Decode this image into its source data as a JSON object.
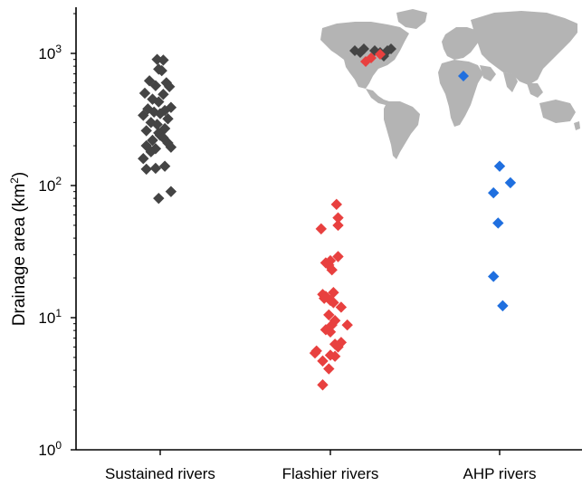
{
  "chart_data": {
    "type": "scatter",
    "ylabel": "Drainage area (km",
    "ylabel_sup": "2",
    "ylabel_close": ")",
    "yscale": "log",
    "ylim": [
      1,
      2000
    ],
    "yticks": [
      {
        "value": 1,
        "base": "10",
        "exp": "0"
      },
      {
        "value": 10,
        "base": "10",
        "exp": "1"
      },
      {
        "value": 100,
        "base": "10",
        "exp": "2"
      },
      {
        "value": 1000,
        "base": "10",
        "exp": "3"
      }
    ],
    "grid": false,
    "categories": [
      "Sustained rivers",
      "Flashier rivers",
      "AHP rivers"
    ],
    "series": [
      {
        "category": "Sustained rivers",
        "color": "#444444",
        "points": [
          {
            "offset": -0.02,
            "y": 900
          },
          {
            "offset": 0.02,
            "y": 890
          },
          {
            "offset": -0.01,
            "y": 760
          },
          {
            "offset": 0.01,
            "y": 740
          },
          {
            "offset": -0.07,
            "y": 620
          },
          {
            "offset": 0.04,
            "y": 600
          },
          {
            "offset": -0.03,
            "y": 570
          },
          {
            "offset": 0.06,
            "y": 560
          },
          {
            "offset": -0.1,
            "y": 500
          },
          {
            "offset": 0.02,
            "y": 490
          },
          {
            "offset": -0.05,
            "y": 450
          },
          {
            "offset": -0.01,
            "y": 430
          },
          {
            "offset": 0.07,
            "y": 390
          },
          {
            "offset": -0.08,
            "y": 380
          },
          {
            "offset": 0.03,
            "y": 370
          },
          {
            "offset": -0.04,
            "y": 360
          },
          {
            "offset": 0.0,
            "y": 350
          },
          {
            "offset": -0.11,
            "y": 340
          },
          {
            "offset": 0.05,
            "y": 320
          },
          {
            "offset": -0.06,
            "y": 300
          },
          {
            "offset": -0.02,
            "y": 290
          },
          {
            "offset": 0.03,
            "y": 270
          },
          {
            "offset": -0.09,
            "y": 260
          },
          {
            "offset": -0.01,
            "y": 250
          },
          {
            "offset": 0.0,
            "y": 240
          },
          {
            "offset": 0.02,
            "y": 230
          },
          {
            "offset": -0.05,
            "y": 220
          },
          {
            "offset": 0.05,
            "y": 210
          },
          {
            "offset": -0.09,
            "y": 200
          },
          {
            "offset": 0.07,
            "y": 195
          },
          {
            "offset": -0.03,
            "y": 190
          },
          {
            "offset": -0.06,
            "y": 180
          },
          {
            "offset": -0.11,
            "y": 160
          },
          {
            "offset": 0.03,
            "y": 140
          },
          {
            "offset": -0.03,
            "y": 135
          },
          {
            "offset": -0.09,
            "y": 133
          },
          {
            "offset": 0.07,
            "y": 90
          },
          {
            "offset": -0.01,
            "y": 80
          }
        ]
      },
      {
        "category": "Flashier rivers",
        "color": "#e8403f",
        "points": [
          {
            "offset": 0.04,
            "y": 72
          },
          {
            "offset": 0.05,
            "y": 57
          },
          {
            "offset": 0.05,
            "y": 50
          },
          {
            "offset": -0.06,
            "y": 47
          },
          {
            "offset": 0.05,
            "y": 29
          },
          {
            "offset": 0.0,
            "y": 27
          },
          {
            "offset": -0.03,
            "y": 26
          },
          {
            "offset": -0.01,
            "y": 25
          },
          {
            "offset": 0.01,
            "y": 23
          },
          {
            "offset": 0.02,
            "y": 15.5
          },
          {
            "offset": -0.05,
            "y": 15
          },
          {
            "offset": -0.03,
            "y": 14.5
          },
          {
            "offset": -0.04,
            "y": 14
          },
          {
            "offset": 0.0,
            "y": 13.5
          },
          {
            "offset": 0.02,
            "y": 13
          },
          {
            "offset": 0.07,
            "y": 12
          },
          {
            "offset": -0.01,
            "y": 10.5
          },
          {
            "offset": 0.03,
            "y": 9.5
          },
          {
            "offset": 0.01,
            "y": 8.8
          },
          {
            "offset": 0.11,
            "y": 8.8
          },
          {
            "offset": -0.03,
            "y": 8.1
          },
          {
            "offset": 0.0,
            "y": 7.8
          },
          {
            "offset": 0.07,
            "y": 6.5
          },
          {
            "offset": 0.03,
            "y": 6.3
          },
          {
            "offset": 0.05,
            "y": 6.0
          },
          {
            "offset": -0.09,
            "y": 5.6
          },
          {
            "offset": -0.1,
            "y": 5.4
          },
          {
            "offset": 0.0,
            "y": 5.2
          },
          {
            "offset": 0.03,
            "y": 5.1
          },
          {
            "offset": -0.05,
            "y": 4.7
          },
          {
            "offset": -0.01,
            "y": 4.1
          },
          {
            "offset": -0.05,
            "y": 3.1
          }
        ]
      },
      {
        "category": "AHP rivers",
        "color": "#1f6fdf",
        "points": [
          {
            "offset": 0.0,
            "y": 140
          },
          {
            "offset": 0.07,
            "y": 105
          },
          {
            "offset": -0.04,
            "y": 88
          },
          {
            "offset": -0.01,
            "y": 52
          },
          {
            "offset": -0.04,
            "y": 20.5
          },
          {
            "offset": 0.02,
            "y": 12.3
          }
        ]
      }
    ],
    "inset": {
      "type": "world-map",
      "land_color": "#b4b4b4",
      "markers": [
        {
          "region": "North America",
          "color": "#444444"
        },
        {
          "region": "North America",
          "color": "#e8403f"
        },
        {
          "region": "East Africa",
          "color": "#1f6fdf"
        }
      ]
    }
  }
}
